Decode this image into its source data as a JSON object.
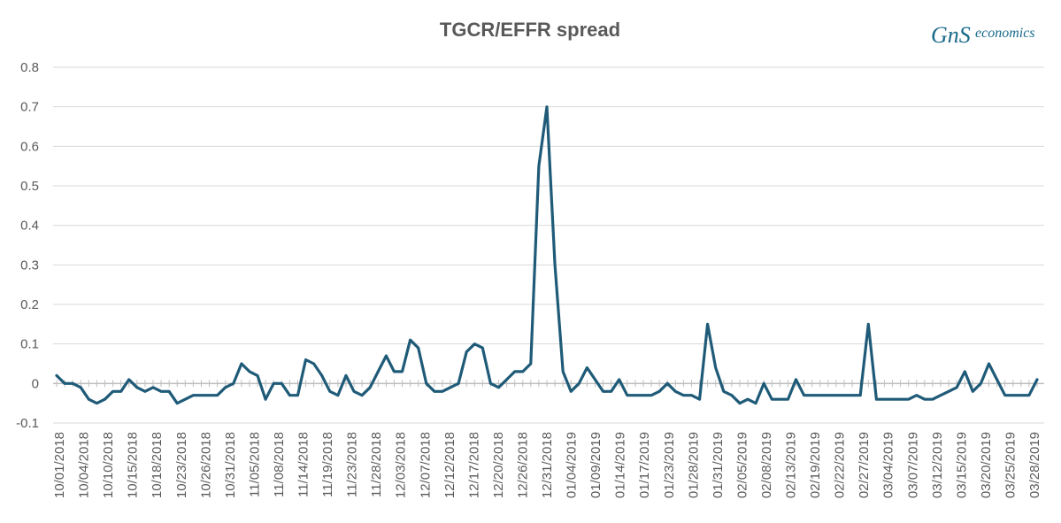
{
  "logo": {
    "mark": "GnS",
    "word": "economics"
  },
  "colors": {
    "line": "#1f5b78",
    "grid": "#d9d9d9",
    "axis": "#bfbfbf",
    "text": "#595959"
  },
  "chart_data": {
    "type": "line",
    "title": "TGCR/EFFR spread",
    "xlabel": "",
    "ylabel": "",
    "ylim": [
      -0.1,
      0.8
    ],
    "yticks": [
      -0.1,
      0,
      0.1,
      0.2,
      0.3,
      0.4,
      0.5,
      0.6,
      0.7,
      0.8
    ],
    "ytick_labels": [
      "-0.1",
      "0",
      "0.1",
      "0.2",
      "0.3",
      "0.4",
      "0.5",
      "0.6",
      "0.7",
      "0.8"
    ],
    "grid": true,
    "legend": "none",
    "xtick_labels": [
      "10/01/2018",
      "10/04/2018",
      "10/10/2018",
      "10/15/2018",
      "10/18/2018",
      "10/23/2018",
      "10/26/2018",
      "10/31/2018",
      "11/05/2018",
      "11/08/2018",
      "11/14/2018",
      "11/19/2018",
      "11/23/2018",
      "11/28/2018",
      "12/03/2018",
      "12/07/2018",
      "12/12/2018",
      "12/17/2018",
      "12/20/2018",
      "12/26/2018",
      "12/31/2018",
      "01/04/2019",
      "01/09/2019",
      "01/14/2019",
      "01/17/2019",
      "01/23/2019",
      "01/28/2019",
      "01/31/2019",
      "02/05/2019",
      "02/08/2019",
      "02/13/2019",
      "02/19/2019",
      "02/22/2019",
      "02/27/2019",
      "03/04/2019",
      "03/07/2019",
      "03/12/2019",
      "03/15/2019",
      "03/20/2019",
      "03/25/2019",
      "03/28/2019"
    ],
    "series": [
      {
        "values": [
          0.02,
          0.0,
          0.0,
          -0.01,
          -0.04,
          -0.05,
          -0.04,
          -0.02,
          -0.02,
          0.01,
          -0.01,
          -0.02,
          -0.01,
          -0.02,
          -0.02,
          -0.05,
          -0.04,
          -0.03,
          -0.03,
          -0.03,
          -0.03,
          -0.01,
          0.0,
          0.05,
          0.03,
          0.02,
          -0.04,
          0.0,
          0.0,
          -0.03,
          -0.03,
          0.06,
          0.05,
          0.02,
          -0.02,
          -0.03,
          0.02,
          -0.02,
          -0.03,
          -0.01,
          0.03,
          0.07,
          0.03,
          0.03,
          0.11,
          0.09,
          0.0,
          -0.02,
          -0.02,
          -0.01,
          0.0,
          0.08,
          0.1,
          0.09,
          0.0,
          -0.01,
          0.01,
          0.03,
          0.03,
          0.05,
          0.55,
          0.7,
          0.3,
          0.03,
          -0.02,
          0.0,
          0.04,
          0.01,
          -0.02,
          -0.02,
          0.01,
          -0.03,
          -0.03,
          -0.03,
          -0.03,
          -0.02,
          0.0,
          -0.02,
          -0.03,
          -0.03,
          -0.04,
          0.15,
          0.04,
          -0.02,
          -0.03,
          -0.05,
          -0.04,
          -0.05,
          0.0,
          -0.04,
          -0.04,
          -0.04,
          0.01,
          -0.03,
          -0.03,
          -0.03,
          -0.03,
          -0.03,
          -0.03,
          -0.03,
          -0.03,
          0.15,
          -0.04,
          -0.04,
          -0.04,
          -0.04,
          -0.04,
          -0.03,
          -0.04,
          -0.04,
          -0.03,
          -0.02,
          -0.01,
          0.03,
          -0.02,
          0.0,
          0.05,
          0.01,
          -0.03,
          -0.03,
          -0.03,
          -0.03,
          0.01
        ]
      }
    ]
  }
}
